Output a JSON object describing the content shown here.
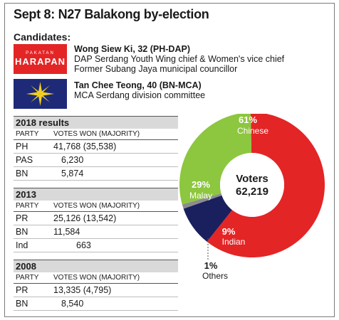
{
  "title": "Sept 8: N27 Balakong by-election",
  "candidates_heading": "Candidates:",
  "candidates": [
    {
      "logo_small": "PAKATAN",
      "logo_big": "HARAPAN",
      "name": "Wong Siew Ki, 32 (PH-DAP)",
      "line1": "DAP Serdang Youth Wing chief & Women's vice chief",
      "line2": "Former Subang Jaya municipal councillor"
    },
    {
      "name": "Tan Chee Teong, 40 (BN-MCA)",
      "line1": "MCA Serdang division committee"
    }
  ],
  "colors": {
    "ph_red": "#e32526",
    "bn_navy": "#1e2a78",
    "bn_yellow": "#f4d01e"
  },
  "tables": [
    {
      "heading": "2018 results",
      "col_party": "PARTY",
      "col_votes": "VOTES WON (MAJORITY)",
      "rows": [
        {
          "party": "PH",
          "votes": "41,768 (35,538)"
        },
        {
          "party": "PAS",
          "votes": "6,230"
        },
        {
          "party": "BN",
          "votes": "5,874"
        }
      ]
    },
    {
      "heading": "2013",
      "col_party": "PARTY",
      "col_votes": "VOTES WON (MAJORITY)",
      "rows": [
        {
          "party": "PR",
          "votes": "25,126 (13,542)"
        },
        {
          "party": "BN",
          "votes": "11,584"
        },
        {
          "party": "Ind",
          "votes": "663"
        }
      ]
    },
    {
      "heading": "2008",
      "col_party": "PARTY",
      "col_votes": "VOTES WON (MAJORITY)",
      "rows": [
        {
          "party": "PR",
          "votes": "13,335 (4,795)"
        },
        {
          "party": "BN",
          "votes": "8,540"
        }
      ]
    }
  ],
  "chart_data": {
    "type": "pie",
    "title": "Voters",
    "center_label": "Voters",
    "center_value": "62,219",
    "slices": [
      {
        "label": "Chinese",
        "pct_label": "61%",
        "value": 61,
        "color": "#e32526"
      },
      {
        "label": "Indian",
        "pct_label": "9%",
        "value": 9,
        "color": "#1a1f5e"
      },
      {
        "label": "Others",
        "pct_label": "1%",
        "value": 1,
        "color": "#8c8c8c"
      },
      {
        "label": "Malay",
        "pct_label": "29%",
        "value": 29,
        "color": "#8dc63f"
      }
    ]
  }
}
